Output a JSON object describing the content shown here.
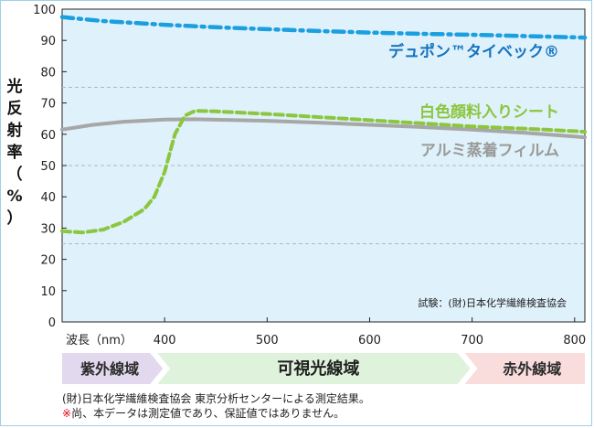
{
  "chart_data": {
    "type": "line",
    "ylabel": "光反射率（%）",
    "xlabel": "波長（nm）",
    "xlim": [
      300,
      810
    ],
    "ylim": [
      0,
      100
    ],
    "y_ticks": [
      0,
      10,
      20,
      30,
      40,
      50,
      60,
      70,
      80,
      90,
      100
    ],
    "x_ticks": [
      400,
      500,
      600,
      700,
      800
    ],
    "gridlines_y": [
      25,
      50,
      75
    ],
    "grid": true,
    "background": "#dff1fa",
    "annotation": "試験：(財)日本化学繊維検査協会",
    "series": [
      {
        "name": "デュポン™タイベック®",
        "color": "#1a9fe0",
        "style": "dashdot",
        "x": [
          300,
          320,
          340,
          360,
          380,
          400,
          450,
          500,
          550,
          600,
          650,
          700,
          750,
          800,
          810
        ],
        "y": [
          97.5,
          96.8,
          96.2,
          95.8,
          95.4,
          95,
          94.2,
          93.6,
          93,
          92.5,
          92.1,
          91.8,
          91.4,
          91.0,
          90.9
        ]
      },
      {
        "name": "白色顔料入りシート",
        "color": "#8cc63f",
        "style": "dashed",
        "x": [
          300,
          320,
          340,
          360,
          380,
          390,
          400,
          410,
          420,
          430,
          450,
          500,
          550,
          600,
          650,
          700,
          750,
          800,
          810
        ],
        "y": [
          29,
          28.6,
          29.5,
          32,
          36,
          40,
          48,
          60,
          66,
          67.5,
          67.3,
          66.5,
          65.5,
          64.5,
          63.5,
          62.5,
          61.8,
          61,
          60.8
        ]
      },
      {
        "name": "アルミ蒸着フィルム",
        "color": "#a7a7a7",
        "style": "solid",
        "x": [
          300,
          330,
          360,
          400,
          430,
          460,
          500,
          550,
          600,
          650,
          700,
          750,
          800,
          810
        ],
        "y": [
          61.5,
          63,
          64,
          64.7,
          64.8,
          64.6,
          64.3,
          63.7,
          63,
          62.3,
          61.5,
          60.5,
          59.3,
          59.0
        ]
      }
    ]
  },
  "bands": [
    {
      "label": "紫外線域",
      "from": 300,
      "to": 400,
      "color": "#e3d9ee",
      "text_color": "#2b2b2b"
    },
    {
      "label": "可視光線域",
      "from": 400,
      "to": 700,
      "color": "#dff2dc",
      "text_color": "#1f1f1f"
    },
    {
      "label": "赤外線域",
      "from": 700,
      "to": 810,
      "color": "#f9dcdc",
      "text_color": "#2b2b2b"
    }
  ],
  "footer": {
    "line1": "(財)日本化学繊維検査協会 東京分析センターによる測定結果。",
    "mark": "※",
    "line2": "尚、本データは測定値であり、保証値ではありません。"
  }
}
